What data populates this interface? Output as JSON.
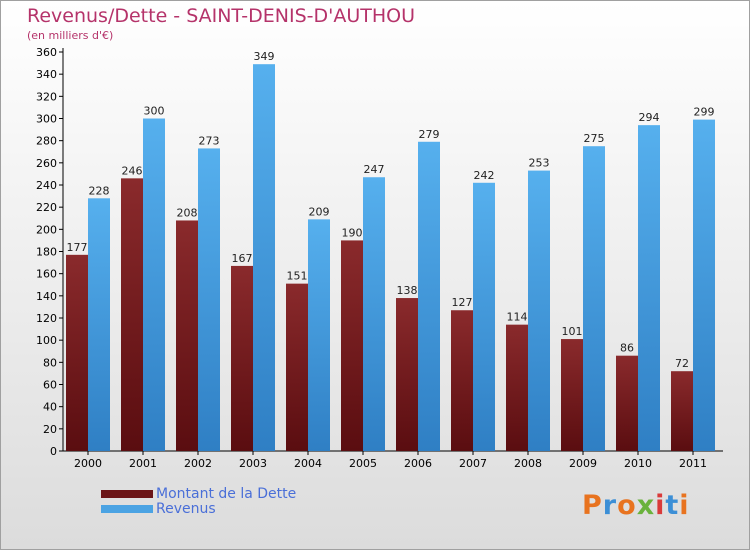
{
  "title": "Revenus/Dette - SAINT-DENIS-D'AUTHOU",
  "subtitle": "(en milliers d'€)",
  "brand": "Proxiti",
  "colors": {
    "dette": "#7a1e20",
    "revenus": "#4ba3e3",
    "title": "#b5336a",
    "legend_text": "#4a6fd8",
    "axis_text": "#000000"
  },
  "chart_data": {
    "type": "bar",
    "title": "Revenus/Dette - SAINT-DENIS-D'AUTHOU",
    "ylabel": "(en milliers d'€)",
    "xlabel": "",
    "ylim": [
      0,
      360
    ],
    "yticks": [
      0,
      20,
      40,
      60,
      80,
      100,
      120,
      140,
      160,
      180,
      200,
      220,
      240,
      260,
      280,
      300,
      320,
      340,
      360
    ],
    "grid": false,
    "legend": "bottom-left",
    "categories": [
      "2000",
      "2001",
      "2002",
      "2003",
      "2004",
      "2005",
      "2006",
      "2007",
      "2008",
      "2009",
      "2010",
      "2011"
    ],
    "series": [
      {
        "name": "Montant de la Dette",
        "values": [
          177,
          246,
          208,
          167,
          151,
          190,
          138,
          127,
          114,
          101,
          86,
          72
        ]
      },
      {
        "name": "Revenus",
        "values": [
          228,
          300,
          273,
          349,
          209,
          247,
          279,
          242,
          253,
          275,
          294,
          299
        ]
      }
    ]
  }
}
